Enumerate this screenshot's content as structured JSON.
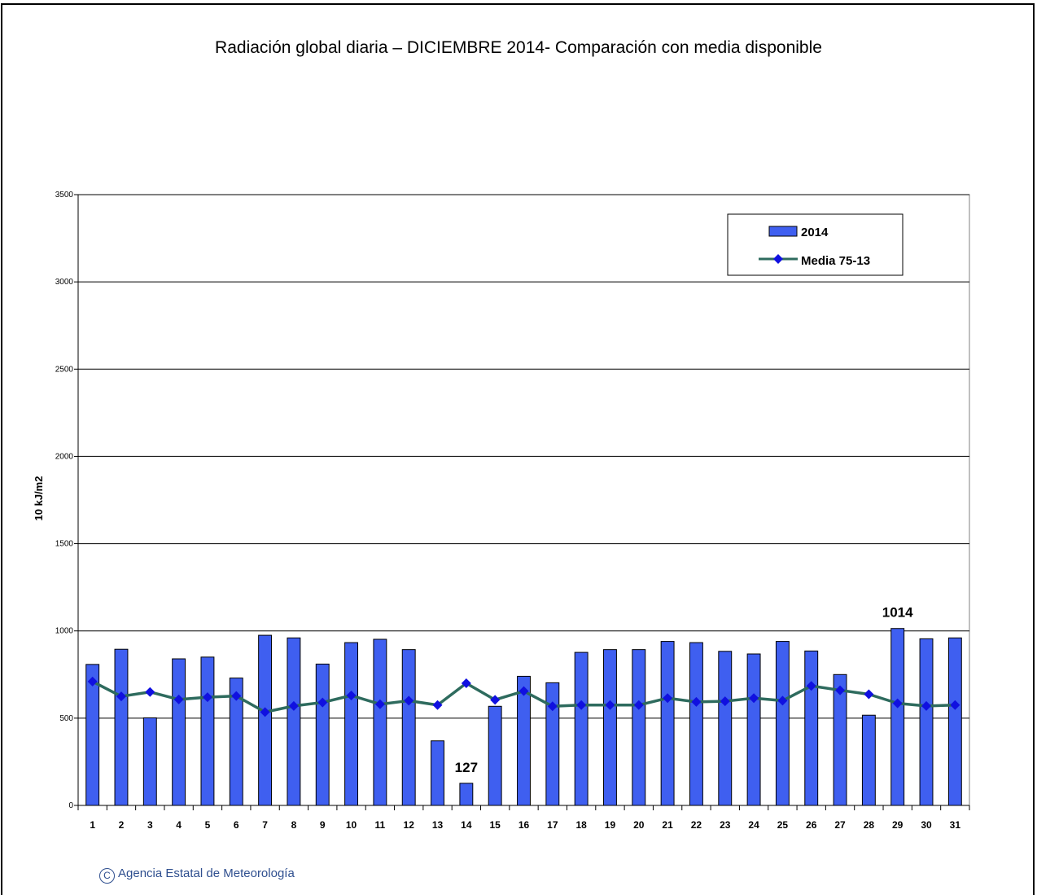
{
  "title": "Radiación global diaria –  DICIEMBRE 2014- Comparación con media disponible",
  "copyright": "Agencia Estatal de Meteorología",
  "copyright_symbol": "C",
  "colors": {
    "bar": "#3f5ff0",
    "line": "#2e6b5e",
    "marker": "#1010e0"
  },
  "chart_data": {
    "type": "bar",
    "title": "Radiación global diaria –  DICIEMBRE 2014- Comparación con media disponible",
    "xlabel": "",
    "ylabel": "10 kJ/m2",
    "ylim": [
      0,
      3500
    ],
    "yticks": [
      0,
      500,
      1000,
      1500,
      2000,
      2500,
      3000,
      3500
    ],
    "grid": true,
    "legend_position": "top-right",
    "categories": [
      "1",
      "2",
      "3",
      "4",
      "5",
      "6",
      "7",
      "8",
      "9",
      "10",
      "11",
      "12",
      "13",
      "14",
      "15",
      "16",
      "17",
      "18",
      "19",
      "20",
      "21",
      "22",
      "23",
      "24",
      "25",
      "26",
      "27",
      "28",
      "29",
      "30",
      "31"
    ],
    "series": [
      {
        "name": "2014",
        "type": "bar",
        "values": [
          808,
          895,
          502,
          840,
          850,
          730,
          975,
          960,
          810,
          933,
          952,
          893,
          370,
          127,
          568,
          740,
          703,
          877,
          893,
          893,
          940,
          933,
          883,
          868,
          940,
          885,
          750,
          517,
          1014,
          955,
          960
        ]
      },
      {
        "name": "Media 75-13",
        "type": "line",
        "values": [
          710,
          625,
          650,
          607,
          620,
          627,
          535,
          570,
          590,
          630,
          580,
          600,
          575,
          700,
          605,
          655,
          568,
          575,
          575,
          575,
          615,
          593,
          597,
          615,
          600,
          685,
          660,
          637,
          585,
          570,
          575
        ]
      }
    ],
    "annotations": [
      {
        "category": "14",
        "text": "127"
      },
      {
        "category": "29",
        "text": "1014"
      }
    ]
  }
}
